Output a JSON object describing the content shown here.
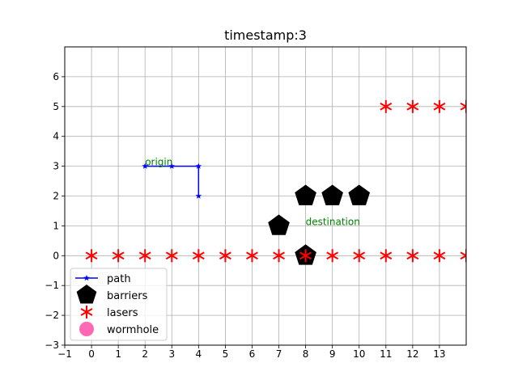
{
  "chart_data": {
    "type": "scatter",
    "title": "timestamp:3",
    "xlabel": "",
    "ylabel": "",
    "xlim": [
      -1,
      14
    ],
    "ylim": [
      -3,
      7
    ],
    "xticks": [
      -1,
      0,
      1,
      2,
      3,
      4,
      5,
      6,
      7,
      8,
      9,
      10,
      11,
      12,
      13
    ],
    "yticks": [
      -3,
      -2,
      -1,
      0,
      1,
      2,
      3,
      4,
      5,
      6
    ],
    "grid": true,
    "legend_position": "lower-left",
    "colors": {
      "path": "#0000ff",
      "barriers": "#000000",
      "lasers": "#ff0000",
      "wormhole": "#ff69b4",
      "annotation": "#008000",
      "grid": "#b0b0b0"
    },
    "series": [
      {
        "name": "path",
        "type": "line",
        "marker": "star",
        "points": [
          [
            2,
            3
          ],
          [
            3,
            3
          ],
          [
            4,
            3
          ],
          [
            4,
            2
          ]
        ]
      },
      {
        "name": "barriers",
        "type": "scatter",
        "marker": "pentagon",
        "points": [
          [
            7,
            1
          ],
          [
            8,
            2
          ],
          [
            9,
            2
          ],
          [
            10,
            2
          ],
          [
            8,
            0
          ]
        ]
      },
      {
        "name": "lasers",
        "type": "scatter",
        "marker": "asterisk",
        "points": [
          [
            0,
            0
          ],
          [
            1,
            0
          ],
          [
            2,
            0
          ],
          [
            3,
            0
          ],
          [
            4,
            0
          ],
          [
            5,
            0
          ],
          [
            6,
            0
          ],
          [
            7,
            0
          ],
          [
            8,
            0
          ],
          [
            9,
            0
          ],
          [
            10,
            0
          ],
          [
            11,
            0
          ],
          [
            12,
            0
          ],
          [
            13,
            0
          ],
          [
            14,
            0
          ],
          [
            11,
            5
          ],
          [
            12,
            5
          ],
          [
            13,
            5
          ],
          [
            14,
            5
          ]
        ]
      },
      {
        "name": "wormhole",
        "type": "scatter",
        "marker": "circle",
        "points": []
      }
    ],
    "annotations": [
      {
        "text": "origin",
        "x": 2,
        "y": 3
      },
      {
        "text": "destination",
        "x": 8,
        "y": 1
      }
    ],
    "legend": [
      "path",
      "barriers",
      "lasers",
      "wormhole"
    ]
  }
}
